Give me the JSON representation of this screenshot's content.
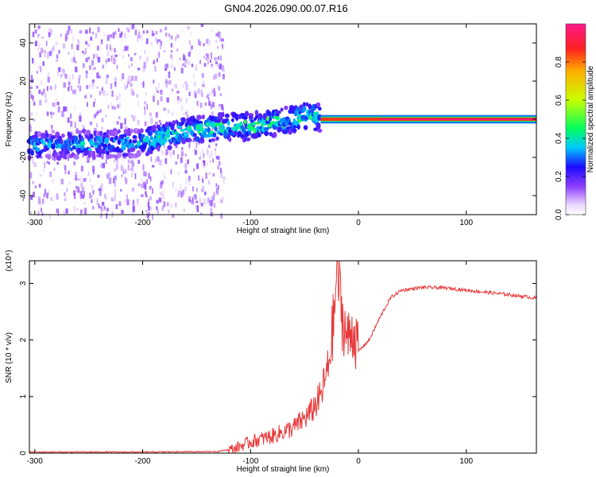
{
  "title": "GN04.2026.090.00.07.R16",
  "chart_data": [
    {
      "type": "heatmap",
      "xlabel": "Height of straight line (km)",
      "ylabel": "Frequency (Hz)",
      "xlim": [
        -305,
        165
      ],
      "ylim": [
        -50,
        50
      ],
      "x_ticks": [
        -300,
        -200,
        -100,
        0,
        100
      ],
      "y_ticks": [
        -40,
        -20,
        0,
        20,
        40
      ],
      "colorbar": {
        "label": "Normalized spectral amplitude",
        "range": [
          0,
          1
        ],
        "ticks": [
          0.0,
          0.2,
          0.4,
          0.6,
          0.8
        ]
      },
      "ridge": {
        "x": [
          -305,
          -260,
          -220,
          -200,
          -180,
          -160,
          -140,
          -120,
          -100,
          -80,
          -60,
          -45,
          -40,
          -30,
          -20,
          -10,
          0,
          50,
          100,
          165
        ],
        "y": [
          -14,
          -13,
          -13,
          -12,
          -9,
          -6,
          -5,
          -4,
          -4,
          -2,
          0,
          3,
          1,
          0,
          0,
          0,
          0,
          0,
          0,
          0
        ]
      }
    },
    {
      "type": "line",
      "xlabel": "Height of straight line (km)",
      "ylabel": "SNR (10 * v/v)",
      "multiplier": "(x10⁴)",
      "xlim": [
        -305,
        165
      ],
      "ylim": [
        0,
        3.4
      ],
      "x_ticks": [
        -300,
        -200,
        -100,
        0,
        100
      ],
      "y_ticks": [
        0,
        1,
        2,
        3
      ],
      "series": [
        {
          "color": "#e8393a",
          "x": [
            -305,
            -200,
            -130,
            -115,
            -100,
            -80,
            -60,
            -45,
            -35,
            -28,
            -22,
            -20,
            -15,
            -10,
            -5,
            0,
            10,
            20,
            30,
            40,
            60,
            80,
            100,
            120,
            140,
            165
          ],
          "y": [
            0.02,
            0.02,
            0.03,
            0.08,
            0.2,
            0.3,
            0.45,
            0.7,
            1.0,
            1.5,
            2.5,
            3.35,
            2.4,
            2.0,
            2.2,
            1.8,
            2.0,
            2.4,
            2.75,
            2.88,
            2.93,
            2.92,
            2.88,
            2.84,
            2.8,
            2.74
          ]
        }
      ]
    }
  ]
}
